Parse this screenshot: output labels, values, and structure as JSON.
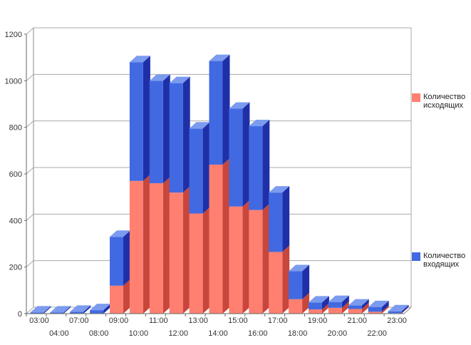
{
  "chart_data": {
    "type": "bar",
    "stacked": true,
    "three_d": true,
    "categories": [
      "03:00",
      "04:00",
      "07:00",
      "08:00",
      "09:00",
      "10:00",
      "11:00",
      "12:00",
      "13:00",
      "14:00",
      "15:00",
      "16:00",
      "17:00",
      "18:00",
      "19:00",
      "20:00",
      "21:00",
      "22:00",
      "23:00"
    ],
    "series": [
      {
        "name": "Количество исходящих",
        "color": "#FF8070",
        "values": [
          0,
          0,
          0,
          0,
          120,
          570,
          560,
          520,
          430,
          640,
          460,
          445,
          265,
          62,
          18,
          25,
          20,
          8,
          2
        ]
      },
      {
        "name": "Количество входящих",
        "color": "#4169E1",
        "values": [
          5,
          5,
          8,
          15,
          210,
          510,
          440,
          470,
          365,
          445,
          420,
          360,
          255,
          120,
          30,
          25,
          15,
          20,
          8
        ]
      }
    ],
    "yticks": [
      0,
      200,
      400,
      600,
      800,
      1000,
      1200
    ],
    "ylim": [
      0,
      1200
    ],
    "grid": true,
    "legend_position": "right"
  }
}
